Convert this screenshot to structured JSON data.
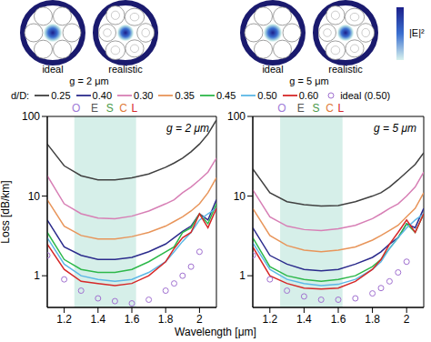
{
  "figure": {
    "legend_title": "d/D:",
    "x_label": "Wavelength [μm]",
    "y_label": "Loss [dB/km]",
    "insets": {
      "colorbar_label": "|E|²",
      "panels": [
        {
          "caption": "g = 2 μm",
          "images": [
            "ideal",
            "realistic"
          ]
        },
        {
          "caption": "g = 5 μm",
          "images": [
            "ideal",
            "realistic"
          ]
        }
      ]
    }
  },
  "chart_data": [
    {
      "type": "line",
      "annotation": "g = 2 μm",
      "x": [
        1.1,
        1.2,
        1.3,
        1.4,
        1.5,
        1.6,
        1.7,
        1.8,
        1.85,
        1.9,
        1.95,
        2.0,
        2.05,
        2.1
      ],
      "xlim": [
        1.1,
        2.1
      ],
      "xticks": [
        1.2,
        1.4,
        1.6,
        1.8,
        2
      ],
      "ylim": [
        0.4,
        100
      ],
      "yticks": [
        1,
        10,
        100
      ],
      "log": "y",
      "shaded_band": [
        1.26,
        1.625
      ],
      "bands": [
        {
          "label": "O",
          "x": 1.27,
          "color": "#a07cd8"
        },
        {
          "label": "E",
          "x": 1.38,
          "color": "#555555"
        },
        {
          "label": "S",
          "x": 1.47,
          "color": "#4a9a4a"
        },
        {
          "label": "C",
          "x": 1.55,
          "color": "#e07b39"
        },
        {
          "label": "L",
          "x": 1.615,
          "color": "#d62828"
        }
      ],
      "series": [
        {
          "name": "0.25",
          "color": "#404040",
          "line_style": "solid",
          "marker": "none",
          "values": [
            45,
            24,
            18,
            16,
            16,
            17,
            19,
            23,
            26,
            30,
            36,
            45,
            60,
            90
          ]
        },
        {
          "name": "0.40",
          "color": "#2b2b8c",
          "line_style": "solid",
          "marker": "none",
          "values": [
            5,
            2.3,
            1.8,
            1.6,
            1.6,
            1.7,
            2.0,
            2.5,
            3,
            3.6,
            4.2,
            6,
            5,
            9
          ]
        },
        {
          "name": "0.30",
          "color": "#d77fb5",
          "line_style": "solid",
          "marker": "none",
          "values": [
            18,
            8,
            6,
            5.3,
            5.2,
            5.6,
            6.5,
            8,
            9,
            11,
            13,
            16,
            20,
            30
          ]
        },
        {
          "name": "0.35",
          "color": "#e8955a",
          "line_style": "solid",
          "marker": "none",
          "values": [
            9,
            4.2,
            3.2,
            2.9,
            2.9,
            3.1,
            3.5,
            4.2,
            4.8,
            5.5,
            6.5,
            8,
            11,
            17
          ]
        },
        {
          "name": "0.45",
          "color": "#2db84a",
          "line_style": "solid",
          "marker": "none",
          "values": [
            3.5,
            1.6,
            1.2,
            1.1,
            1.1,
            1.2,
            1.5,
            2,
            2.3,
            3.5,
            4,
            6,
            4.5,
            8
          ]
        },
        {
          "name": "0.50",
          "color": "#5cb8e6",
          "line_style": "solid",
          "marker": "none",
          "values": [
            3,
            1.4,
            1.0,
            0.9,
            0.85,
            0.9,
            1.1,
            1.5,
            2,
            2.7,
            3.5,
            5,
            6,
            7
          ]
        },
        {
          "name": "0.60",
          "color": "#d62828",
          "line_style": "solid",
          "marker": "none",
          "values": [
            2.5,
            1.2,
            0.85,
            0.8,
            0.75,
            0.8,
            1.0,
            1.5,
            2.2,
            3,
            3.5,
            6,
            4,
            7
          ]
        },
        {
          "name": "ideal (0.50)",
          "color": "#a070d0",
          "line_style": "none",
          "marker": "circle",
          "values": [
            1.8,
            0.9,
            0.65,
            0.52,
            0.48,
            0.45,
            0.5,
            0.65,
            0.8,
            1.0,
            1.3,
            2,
            null,
            null
          ]
        }
      ]
    },
    {
      "type": "line",
      "annotation": "g = 5 μm",
      "x": [
        1.1,
        1.2,
        1.3,
        1.4,
        1.5,
        1.6,
        1.7,
        1.8,
        1.85,
        1.9,
        1.95,
        2.0,
        2.05,
        2.1
      ],
      "xlim": [
        1.1,
        2.1
      ],
      "xticks": [
        1.2,
        1.4,
        1.6,
        1.8,
        2
      ],
      "ylim": [
        0.4,
        100
      ],
      "yticks": [
        1,
        10,
        100
      ],
      "log": "y",
      "shaded_band": [
        1.26,
        1.625
      ],
      "bands": [
        {
          "label": "O",
          "x": 1.27,
          "color": "#a07cd8"
        },
        {
          "label": "E",
          "x": 1.38,
          "color": "#555555"
        },
        {
          "label": "S",
          "x": 1.47,
          "color": "#4a9a4a"
        },
        {
          "label": "C",
          "x": 1.55,
          "color": "#e07b39"
        },
        {
          "label": "L",
          "x": 1.615,
          "color": "#d62828"
        }
      ],
      "series": [
        {
          "name": "0.25",
          "color": "#404040",
          "line_style": "solid",
          "marker": "none",
          "values": [
            22,
            11,
            8.5,
            7.8,
            7.5,
            7.6,
            8.5,
            10,
            11,
            13,
            16,
            20,
            25,
            35
          ]
        },
        {
          "name": "0.40",
          "color": "#2b2b8c",
          "line_style": "solid",
          "marker": "none",
          "values": [
            4,
            1.8,
            1.4,
            1.2,
            1.15,
            1.2,
            1.4,
            1.7,
            2,
            2.5,
            3,
            4.5,
            4,
            7
          ]
        },
        {
          "name": "0.30",
          "color": "#d77fb5",
          "line_style": "solid",
          "marker": "none",
          "values": [
            12,
            5.5,
            4.2,
            3.8,
            3.7,
            3.9,
            4.3,
            5.2,
            6,
            7,
            8,
            10,
            13,
            20
          ]
        },
        {
          "name": "0.35",
          "color": "#e8955a",
          "line_style": "solid",
          "marker": "none",
          "values": [
            7,
            3.2,
            2.4,
            2.1,
            2.0,
            2.1,
            2.3,
            2.8,
            3.2,
            3.7,
            4.3,
            5.5,
            7,
            11
          ]
        },
        {
          "name": "0.45",
          "color": "#2db84a",
          "line_style": "solid",
          "marker": "none",
          "values": [
            3,
            1.3,
            1.0,
            0.9,
            0.85,
            0.9,
            1.0,
            1.3,
            1.6,
            2.2,
            3,
            4.5,
            3.5,
            6
          ]
        },
        {
          "name": "0.50",
          "color": "#5cb8e6",
          "line_style": "solid",
          "marker": "none",
          "values": [
            2.6,
            1.2,
            0.9,
            0.8,
            0.75,
            0.78,
            0.9,
            1.2,
            1.5,
            2.2,
            3,
            4,
            5,
            6
          ]
        },
        {
          "name": "0.60",
          "color": "#d62828",
          "line_style": "solid",
          "marker": "none",
          "values": [
            2.3,
            1.0,
            0.8,
            0.7,
            0.68,
            0.7,
            0.85,
            1.2,
            1.6,
            2.5,
            3.5,
            5,
            3.5,
            6
          ]
        },
        {
          "name": "ideal (0.50)",
          "color": "#a070d0",
          "line_style": "none",
          "marker": "circle",
          "values": [
            1.8,
            0.9,
            0.65,
            0.55,
            0.5,
            0.5,
            0.52,
            0.6,
            0.7,
            0.85,
            1.1,
            1.5,
            null,
            null
          ]
        }
      ]
    }
  ]
}
